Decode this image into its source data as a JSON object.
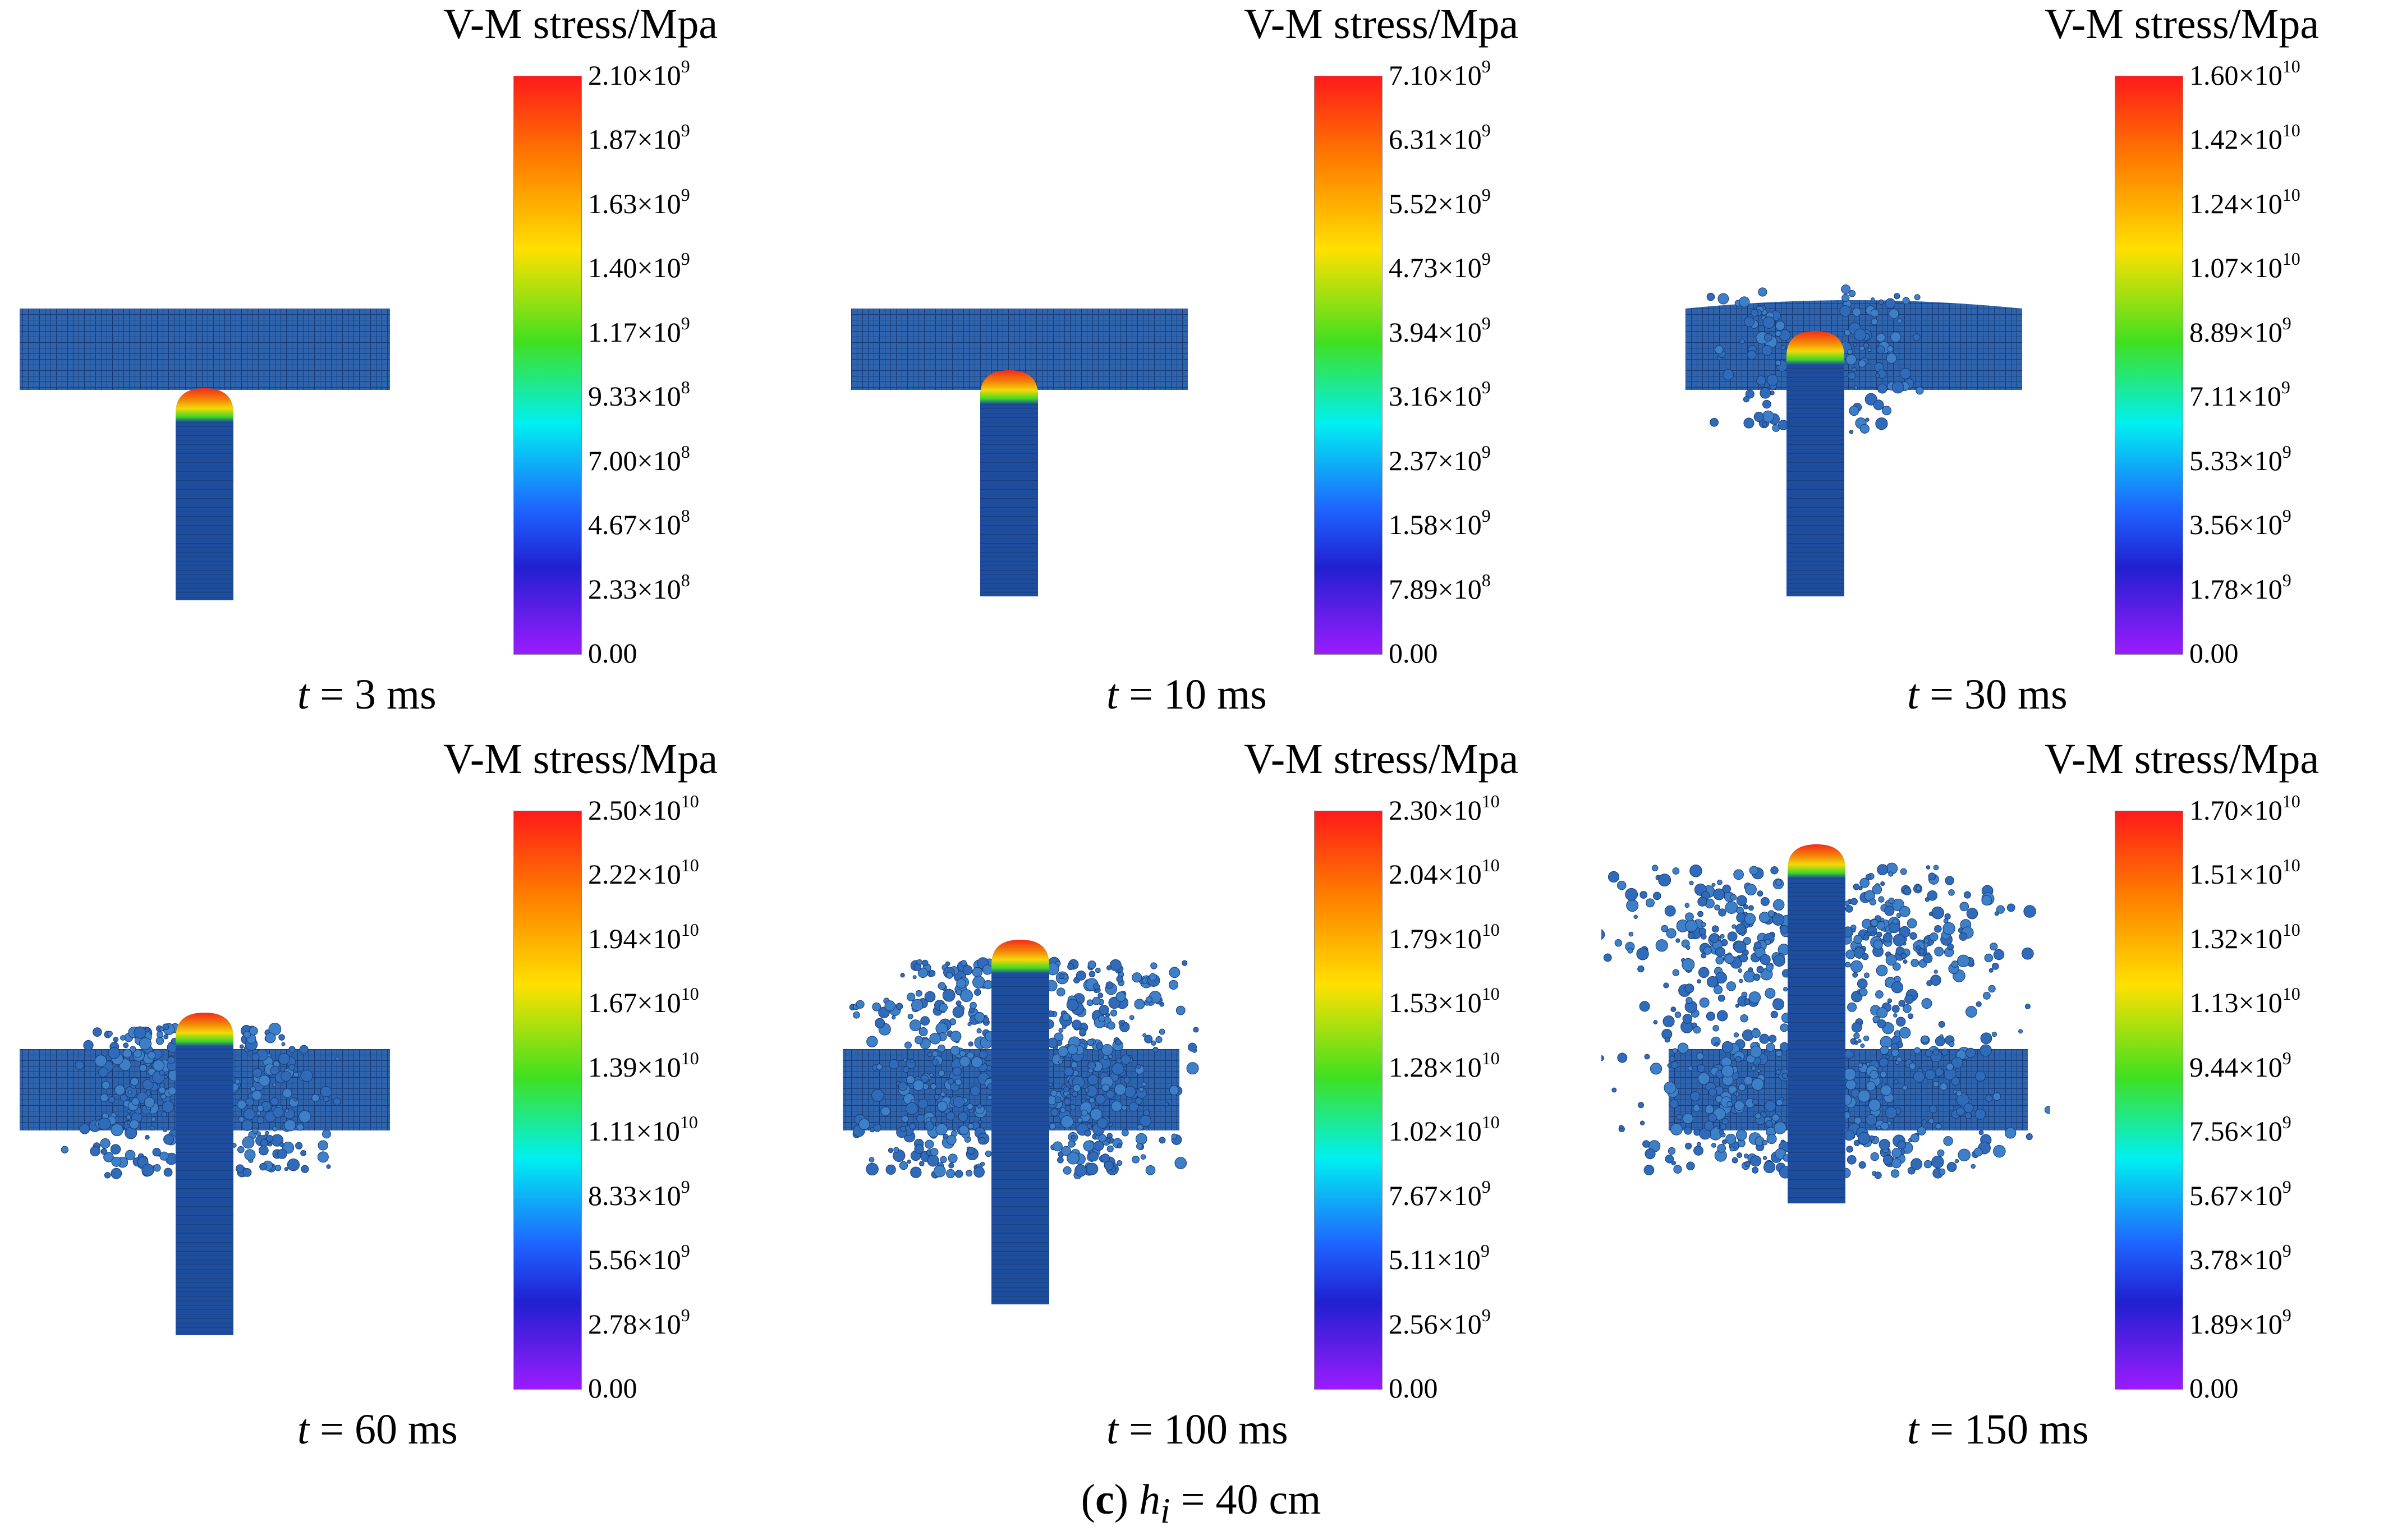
{
  "colorbar_title": "V-M stress/Mpa",
  "colors": {
    "mesh": "#2d64ad",
    "mesh_line": "#1a3a75",
    "rod": "#1f4d9e",
    "tip_hot": "#ff2a10",
    "tip_warm": "#ffe000",
    "tip_cool": "#40e020"
  },
  "panels": [
    {
      "time_label": "t",
      "time_value": "= 3 ms",
      "ticks": [
        {
          "m": "2.10×10",
          "e": "9"
        },
        {
          "m": "1.87×10",
          "e": "9"
        },
        {
          "m": "1.63×10",
          "e": "9"
        },
        {
          "m": "1.40×10",
          "e": "9"
        },
        {
          "m": "1.17×10",
          "e": "9"
        },
        {
          "m": "9.33×10",
          "e": "8"
        },
        {
          "m": "7.00×10",
          "e": "8"
        },
        {
          "m": "4.67×10",
          "e": "8"
        },
        {
          "m": "2.33×10",
          "e": "8"
        },
        {
          "m": "0.00",
          "e": ""
        }
      ],
      "stage": 0
    },
    {
      "time_label": "t",
      "time_value": "= 10 ms",
      "ticks": [
        {
          "m": "7.10×10",
          "e": "9"
        },
        {
          "m": "6.31×10",
          "e": "9"
        },
        {
          "m": "5.52×10",
          "e": "9"
        },
        {
          "m": "4.73×10",
          "e": "9"
        },
        {
          "m": "3.94×10",
          "e": "9"
        },
        {
          "m": "3.16×10",
          "e": "9"
        },
        {
          "m": "2.37×10",
          "e": "9"
        },
        {
          "m": "1.58×10",
          "e": "9"
        },
        {
          "m": "7.89×10",
          "e": "8"
        },
        {
          "m": "0.00",
          "e": ""
        }
      ],
      "stage": 1
    },
    {
      "time_label": "t",
      "time_value": "= 30 ms",
      "ticks": [
        {
          "m": "1.60×10",
          "e": "10"
        },
        {
          "m": "1.42×10",
          "e": "10"
        },
        {
          "m": "1.24×10",
          "e": "10"
        },
        {
          "m": "1.07×10",
          "e": "10"
        },
        {
          "m": "8.89×10",
          "e": "9"
        },
        {
          "m": "7.11×10",
          "e": "9"
        },
        {
          "m": "5.33×10",
          "e": "9"
        },
        {
          "m": "3.56×10",
          "e": "9"
        },
        {
          "m": "1.78×10",
          "e": "9"
        },
        {
          "m": "0.00",
          "e": ""
        }
      ],
      "stage": 2
    },
    {
      "time_label": "t",
      "time_value": "= 60 ms",
      "ticks": [
        {
          "m": "2.50×10",
          "e": "10"
        },
        {
          "m": "2.22×10",
          "e": "10"
        },
        {
          "m": "1.94×10",
          "e": "10"
        },
        {
          "m": "1.67×10",
          "e": "10"
        },
        {
          "m": "1.39×10",
          "e": "10"
        },
        {
          "m": "1.11×10",
          "e": "10"
        },
        {
          "m": "8.33×10",
          "e": "9"
        },
        {
          "m": "5.56×10",
          "e": "9"
        },
        {
          "m": "2.78×10",
          "e": "9"
        },
        {
          "m": "0.00",
          "e": ""
        }
      ],
      "stage": 3
    },
    {
      "time_label": "t",
      "time_value": "= 100 ms",
      "ticks": [
        {
          "m": "2.30×10",
          "e": "10"
        },
        {
          "m": "2.04×10",
          "e": "10"
        },
        {
          "m": "1.79×10",
          "e": "10"
        },
        {
          "m": "1.53×10",
          "e": "10"
        },
        {
          "m": "1.28×10",
          "e": "10"
        },
        {
          "m": "1.02×10",
          "e": "10"
        },
        {
          "m": "7.67×10",
          "e": "9"
        },
        {
          "m": "5.11×10",
          "e": "9"
        },
        {
          "m": "2.56×10",
          "e": "9"
        },
        {
          "m": "0.00",
          "e": ""
        }
      ],
      "stage": 4
    },
    {
      "time_label": "t",
      "time_value": "= 150 ms",
      "ticks": [
        {
          "m": "1.70×10",
          "e": "10"
        },
        {
          "m": "1.51×10",
          "e": "10"
        },
        {
          "m": "1.32×10",
          "e": "10"
        },
        {
          "m": "1.13×10",
          "e": "10"
        },
        {
          "m": "9.44×10",
          "e": "9"
        },
        {
          "m": "7.56×10",
          "e": "9"
        },
        {
          "m": "5.67×10",
          "e": "9"
        },
        {
          "m": "3.78×10",
          "e": "9"
        },
        {
          "m": "1.89×10",
          "e": "9"
        },
        {
          "m": "0.00",
          "e": ""
        }
      ],
      "stage": 5
    }
  ],
  "caption": {
    "panel_letter": "c",
    "open": "(",
    "close": ")",
    "var": "h",
    "sub": "i",
    "value": " = 40 cm"
  }
}
